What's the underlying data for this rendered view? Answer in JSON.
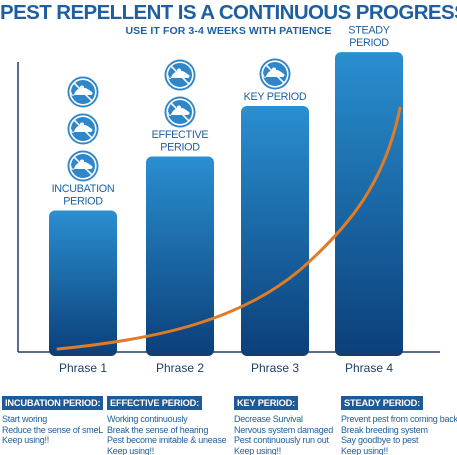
{
  "header": {
    "title": "PEST REPELLENT IS A CONTINUOUS PROGRESS",
    "subtitle": "USE IT FOR 3-4 WEEKS WITH PATIENCE"
  },
  "colors": {
    "title": "#1f5fa0",
    "bar_top": "#2a8fd0",
    "bar_bottom": "#0b3f7a",
    "curve": "#e07b26",
    "axis": "#1d3f66",
    "icon_fill": "#2f86c8"
  },
  "chart_data": {
    "type": "bar",
    "categories": [
      "Phrase 1",
      "Phrase 2",
      "Phrase 3",
      "Phrase 4"
    ],
    "bar_labels": [
      [
        "INCUBATION",
        "PERIOD"
      ],
      [
        "EFFECTIVE",
        "PERIOD"
      ],
      [
        "KEY PERIOD"
      ],
      [
        "STEADY",
        "PERIOD"
      ]
    ],
    "values": [
      42,
      58,
      73,
      89
    ],
    "ylim": [
      0,
      100
    ],
    "crossed_mouse_icons": [
      3,
      2,
      1,
      0
    ],
    "trend_curve": true,
    "grid": false,
    "legend": "none"
  },
  "info": [
    {
      "header": "INCUBATION PERIOD:",
      "lines": [
        "Start woring",
        "Reduce the sense of smeL",
        "Keep using!!"
      ]
    },
    {
      "header": "EFFECTIVE PERIOD:",
      "lines": [
        "Working continuously",
        "Break the sense of hearing",
        "Pest become imitable & unease",
        "Keep using!!"
      ]
    },
    {
      "header": "KEY PERIOD:",
      "lines": [
        "Decrease Survival",
        "Nervous system damaged",
        "Pest continuously run out",
        "Keep using!!"
      ]
    },
    {
      "header": "STEADY PERIOD:",
      "lines": [
        "Prevent pest from coming back",
        "Break breeding system",
        "Say goodbye to pest",
        "Keep using!!"
      ]
    }
  ]
}
